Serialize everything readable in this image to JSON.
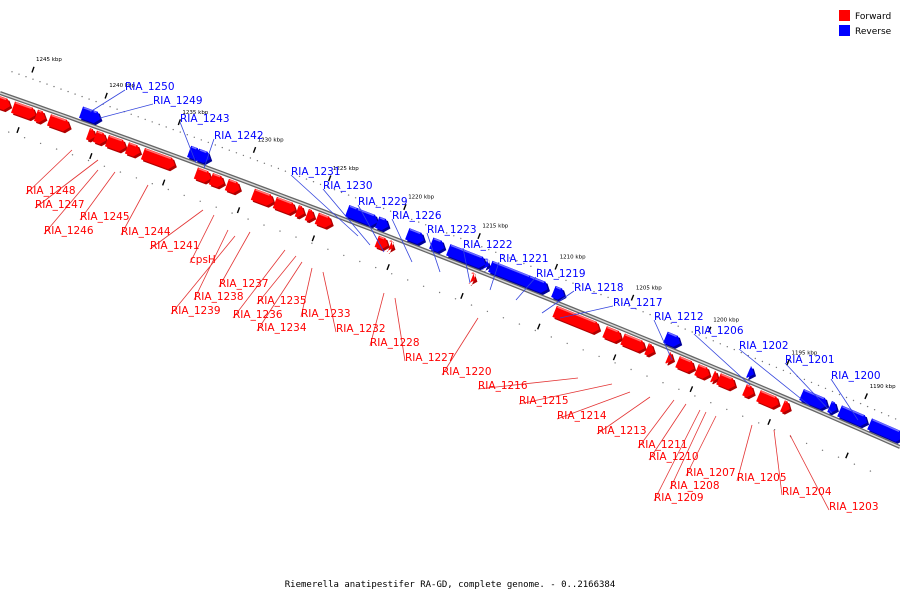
{
  "colors": {
    "forward": "#ff0000",
    "reverse": "#0000ff",
    "backbone": "#888888",
    "leader_forward": "#e33333",
    "leader_reverse": "#3344dd"
  },
  "legend": {
    "forward_label": "Forward",
    "reverse_label": "Reverse"
  },
  "caption": "Riemerella anatipestifer RA-GD, complete genome. - 0..2166384",
  "ticks": [
    "1245 kbp",
    "1240 kbp",
    "1235 kbp",
    "1230 kbp",
    "1225 kbp",
    "1220 kbp",
    "1215 kbp",
    "1210 kbp",
    "1205 kbp",
    "1200 kbp",
    "1195 kbp",
    "1190 kbp"
  ],
  "reverse_genes": [
    "RIA_1250",
    "RIA_1249",
    "RIA_1243",
    "RIA_1242",
    "RIA_1231",
    "RIA_1230",
    "RIA_1229",
    "RIA_1226",
    "RIA_1223",
    "RIA_1222",
    "RIA_1221",
    "RIA_1219",
    "RIA_1218",
    "RIA_1217",
    "RIA_1212",
    "RIA_1206",
    "RIA_1202",
    "RIA_1201",
    "RIA_1200"
  ],
  "forward_genes": [
    "RIA_1248",
    "RIA_1247",
    "RIA_1245",
    "RIA_1246",
    "RIA_1244",
    "RIA_1241",
    "cpsH",
    "RIA_1237",
    "RIA_1238",
    "RIA_1239",
    "RIA_1235",
    "RIA_1236",
    "RIA_1234",
    "RIA_1233",
    "RIA_1232",
    "RIA_1228",
    "RIA_1227",
    "RIA_1220",
    "RIA_1216",
    "RIA_1215",
    "RIA_1214",
    "RIA_1213",
    "RIA_1211",
    "RIA_1210",
    "RIA_1207",
    "RIA_1208",
    "RIA_1209",
    "RIA_1205",
    "RIA_1204",
    "RIA_1203"
  ]
}
